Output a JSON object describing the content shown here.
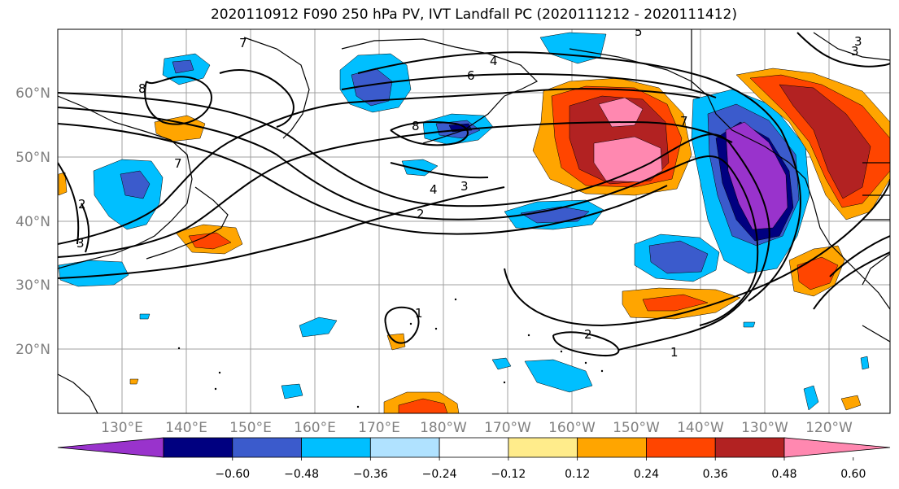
{
  "title": "2020110912 F090 250 hPa PV, IVT Landfall PC (2020111212 - 2020111412)",
  "lon_ticks": [
    "130°E",
    "140°E",
    "150°E",
    "160°E",
    "170°E",
    "180°W",
    "170°W",
    "160°W",
    "150°W",
    "140°W",
    "130°W",
    "120°W"
  ],
  "lat_ticks": [
    "60°N",
    "50°N",
    "40°N",
    "30°N",
    "20°N"
  ],
  "colorbar": {
    "colors": [
      "#9933cc",
      "#000080",
      "#3b5bcc",
      "#00bfff",
      "#b0e2ff",
      "#ffffff",
      "#ffec8b",
      "#ffa500",
      "#ff4500",
      "#b22222",
      "#ff88b0"
    ],
    "ticks": [
      "−0.60",
      "−0.48",
      "−0.36",
      "−0.24",
      "−0.12",
      "0.12",
      "0.24",
      "0.36",
      "0.48",
      "0.60"
    ]
  },
  "contour_labels": [
    "7",
    "6",
    "5",
    "3",
    "8",
    "7",
    "4",
    "3",
    "2",
    "2",
    "3",
    "1",
    "2",
    "1",
    "8",
    "7",
    "4",
    "3"
  ]
}
